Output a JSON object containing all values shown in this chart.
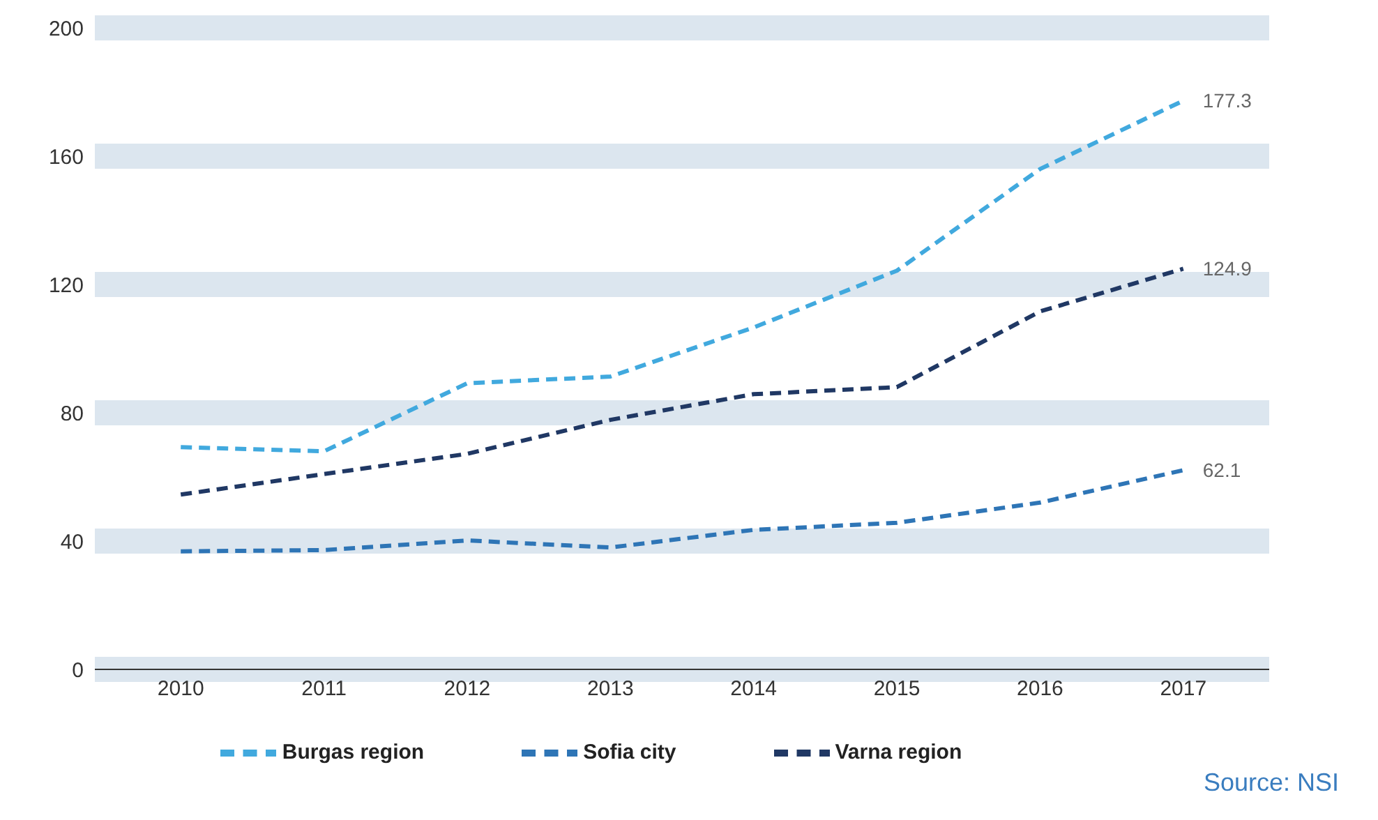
{
  "chart_data": {
    "type": "line",
    "categories": [
      "2010",
      "2011",
      "2012",
      "2013",
      "2014",
      "2015",
      "2016",
      "2017"
    ],
    "series": [
      {
        "name": "Sofia city",
        "color": "#2e75b6",
        "values": [
          36.8,
          37.2,
          40.2,
          38,
          43.5,
          45.7,
          52,
          62.1
        ],
        "value_labels": [
          null,
          null,
          null,
          null,
          null,
          null,
          null,
          "62.1"
        ]
      },
      {
        "name": "Varna region",
        "color": "#203864",
        "values": [
          54.5,
          60.9,
          67.2,
          77.8,
          85.8,
          88,
          111.6,
          124.9
        ],
        "value_labels": [
          null,
          null,
          null,
          null,
          null,
          null,
          null,
          "124.9"
        ]
      },
      {
        "name": "Burgas region",
        "color": "#41a9de",
        "values": [
          69.3,
          68,
          89.2,
          91.3,
          106.6,
          124.3,
          156,
          177.3
        ],
        "value_labels": [
          null,
          null,
          null,
          null,
          null,
          null,
          null,
          "177.3"
        ]
      }
    ],
    "ylim": [
      0,
      200
    ],
    "yticks": [
      0,
      40,
      80,
      120,
      160,
      200
    ],
    "grid": "y",
    "legend": "bottom",
    "line_style": "dashed",
    "marker": "none",
    "annotations": [
      "Source: NSI"
    ]
  }
}
